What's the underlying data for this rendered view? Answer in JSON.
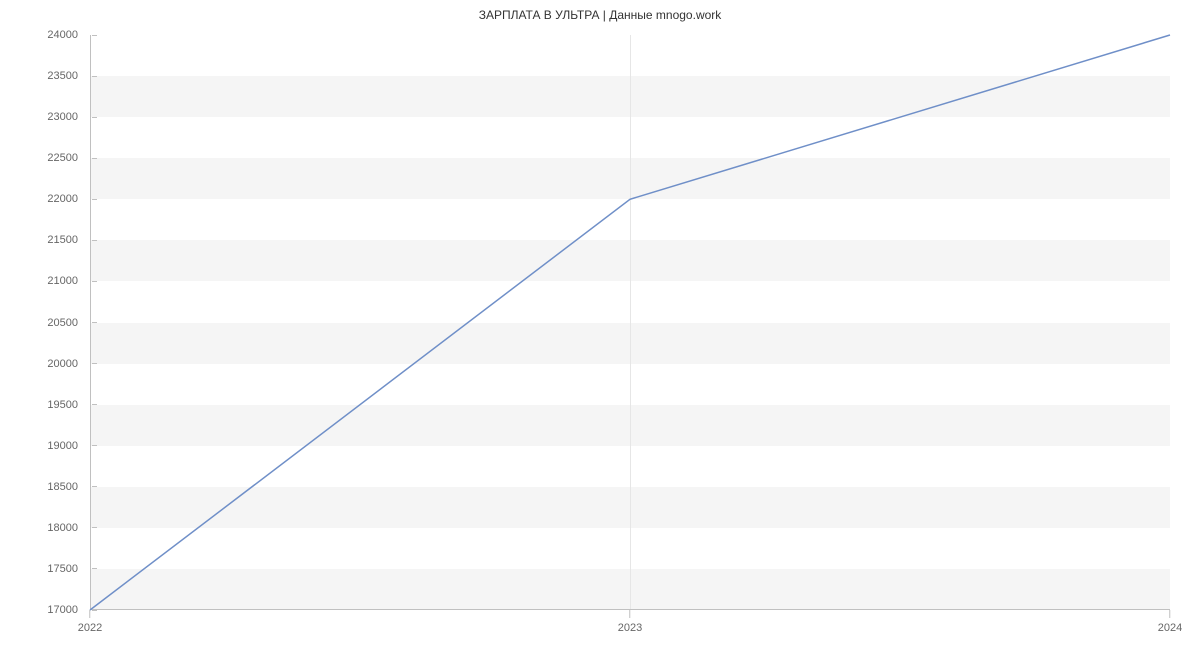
{
  "chart": {
    "type": "line",
    "title": "ЗАРПЛАТА В УЛЬТРА | Данные mnogo.work",
    "title_fontsize": 12,
    "title_color": "#333333",
    "background_color": "#ffffff",
    "plot_background": "#ffffff",
    "band_color": "#f5f5f5",
    "axis_color": "#c0c0c0",
    "tick_mark_color": "#c0c0c0",
    "gridline_color": "#e6e6e6",
    "tick_label_color": "#666666",
    "tick_fontsize": 11,
    "y_axis": {
      "min": 17000,
      "max": 24000,
      "step": 500,
      "ticks": [
        17000,
        17500,
        18000,
        18500,
        19000,
        19500,
        20000,
        20500,
        21000,
        21500,
        22000,
        22500,
        23000,
        23500,
        24000
      ]
    },
    "x_axis": {
      "ticks": [
        "2022",
        "2023",
        "2024"
      ],
      "positions": [
        0,
        0.5,
        1
      ]
    },
    "series": {
      "color": "#6f8fc8",
      "line_width": 1.5,
      "data": [
        {
          "x": 0,
          "y": 17000
        },
        {
          "x": 0.5,
          "y": 22000
        },
        {
          "x": 1,
          "y": 24000
        }
      ]
    }
  }
}
